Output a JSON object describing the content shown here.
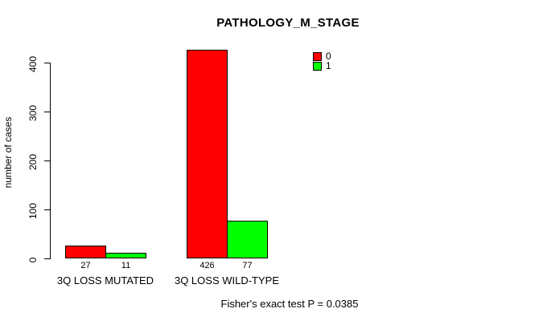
{
  "title": "PATHOLOGY_M_STAGE",
  "footer": "Fisher's exact test P = 0.0385",
  "colors": {
    "series0": "#ff0000",
    "series1": "#00ff00",
    "axis": "#000000",
    "background": "#ffffff"
  },
  "legend": {
    "items": [
      {
        "label": "0",
        "color": "#ff0000"
      },
      {
        "label": "1",
        "color": "#00ff00"
      }
    ]
  },
  "chart_data": {
    "type": "bar",
    "title": "PATHOLOGY_M_STAGE",
    "xlabel": "",
    "ylabel": "number of cases",
    "categories": [
      "3Q LOSS MUTATED",
      "3Q LOSS WILD-TYPE"
    ],
    "series": [
      {
        "name": "0",
        "color": "#ff0000",
        "values": [
          27,
          426
        ]
      },
      {
        "name": "1",
        "color": "#00ff00",
        "values": [
          11,
          77
        ]
      }
    ],
    "yticks": [
      0,
      100,
      200,
      300,
      400
    ],
    "ylim": [
      0,
      426
    ],
    "grid": false,
    "legend_position": "top-right",
    "annotation": "Fisher's exact test P = 0.0385"
  }
}
